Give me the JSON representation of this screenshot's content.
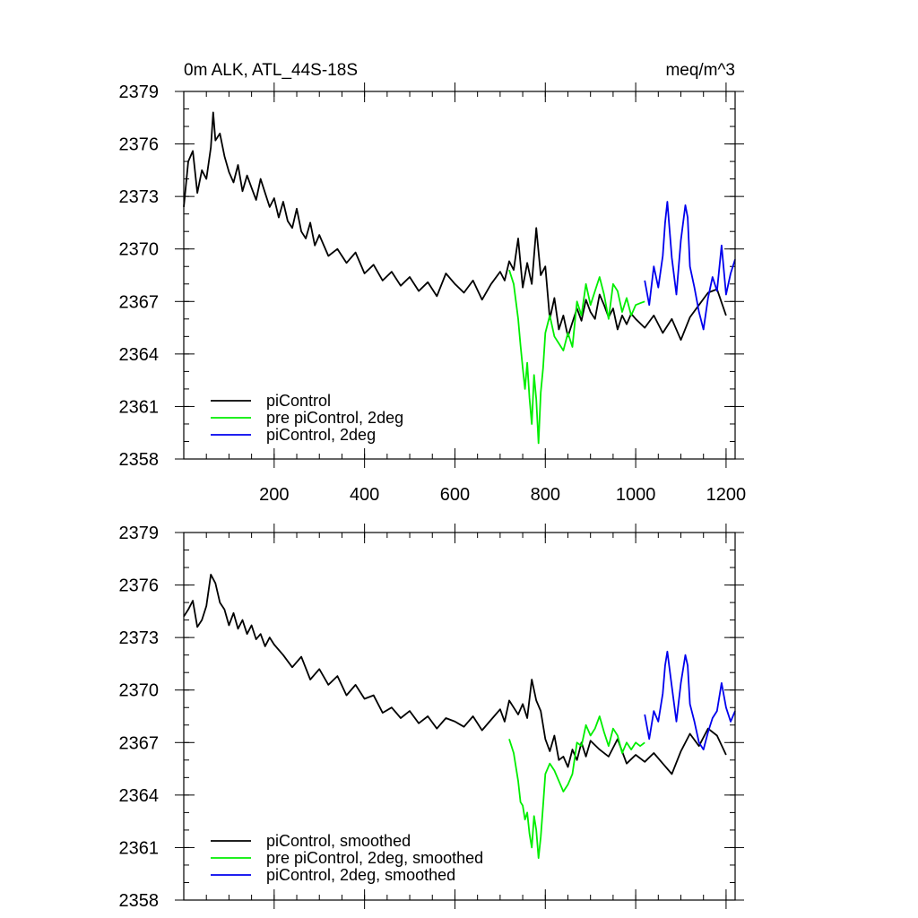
{
  "figure": {
    "title_left": "0m ALK, ATL_44S-18S",
    "title_right": "meq/m^3"
  },
  "chart_data": [
    {
      "type": "line",
      "panel": "top",
      "title": "0m ALK, ATL_44S-18S",
      "units": "meq/m^3",
      "xlim": [
        0,
        1220
      ],
      "ylim": [
        2358,
        2379
      ],
      "yticks": [
        2358,
        2361,
        2364,
        2367,
        2370,
        2373,
        2376,
        2379
      ],
      "ytick_labels": [
        "2358",
        "2361",
        "2364",
        "2367",
        "2370",
        "2373",
        "2376",
        "2379"
      ],
      "xticks": [
        200,
        400,
        600,
        800,
        1000,
        1200
      ],
      "xtick_labels": [
        "200",
        "400",
        "600",
        "800",
        "1000",
        "1200"
      ],
      "legend_position": "bottom-left",
      "series": [
        {
          "name": "piControl",
          "color": "#000000",
          "x": [
            0,
            10,
            20,
            30,
            40,
            50,
            60,
            65,
            70,
            80,
            90,
            100,
            110,
            120,
            130,
            140,
            150,
            160,
            170,
            180,
            190,
            200,
            210,
            220,
            230,
            240,
            250,
            260,
            270,
            280,
            290,
            300,
            320,
            340,
            360,
            380,
            400,
            420,
            440,
            460,
            480,
            500,
            520,
            540,
            560,
            580,
            600,
            620,
            640,
            660,
            680,
            700,
            710,
            720,
            730,
            740,
            750,
            760,
            770,
            780,
            790,
            800,
            810,
            820,
            830,
            840,
            850,
            860,
            870,
            880,
            890,
            900,
            910,
            920,
            930,
            940,
            950,
            960,
            970,
            980,
            990,
            1000,
            1020,
            1040,
            1060,
            1080,
            1100,
            1120,
            1140,
            1160,
            1180,
            1200
          ],
          "y": [
            2372.4,
            2375.0,
            2375.6,
            2373.2,
            2374.5,
            2374.0,
            2375.8,
            2377.8,
            2376.2,
            2376.6,
            2375.3,
            2374.4,
            2373.8,
            2374.8,
            2373.3,
            2374.2,
            2373.5,
            2372.8,
            2374.0,
            2373.2,
            2372.4,
            2372.9,
            2371.8,
            2372.7,
            2371.6,
            2371.2,
            2372.3,
            2371.0,
            2370.6,
            2371.5,
            2370.2,
            2370.8,
            2369.6,
            2370.0,
            2369.2,
            2369.8,
            2368.6,
            2369.1,
            2368.2,
            2368.7,
            2367.9,
            2368.4,
            2367.6,
            2368.1,
            2367.3,
            2368.6,
            2368.0,
            2367.5,
            2368.2,
            2367.1,
            2368.0,
            2368.7,
            2368.2,
            2369.3,
            2368.8,
            2370.6,
            2367.8,
            2369.2,
            2368.0,
            2371.2,
            2368.5,
            2369.0,
            2366.0,
            2367.2,
            2365.4,
            2366.2,
            2365.0,
            2365.8,
            2366.6,
            2365.9,
            2367.1,
            2366.4,
            2366.0,
            2367.4,
            2366.8,
            2366.1,
            2366.6,
            2365.4,
            2366.2,
            2365.7,
            2366.3,
            2366.0,
            2365.5,
            2366.2,
            2365.2,
            2366.0,
            2364.8,
            2366.1,
            2366.8,
            2367.5,
            2367.7,
            2366.2
          ]
        },
        {
          "name": "pre piControl, 2deg",
          "color": "#00ee00",
          "x": [
            720,
            730,
            740,
            745,
            750,
            755,
            760,
            765,
            770,
            775,
            780,
            785,
            790,
            795,
            800,
            810,
            820,
            830,
            840,
            850,
            860,
            870,
            880,
            890,
            900,
            910,
            920,
            930,
            940,
            950,
            960,
            970,
            980,
            990,
            1000,
            1010,
            1020
          ],
          "y": [
            2368.8,
            2368.0,
            2366.0,
            2364.5,
            2363.2,
            2362.0,
            2363.5,
            2361.5,
            2360.0,
            2362.8,
            2361.4,
            2358.9,
            2361.8,
            2363.2,
            2365.2,
            2366.2,
            2365.0,
            2364.6,
            2364.2,
            2365.2,
            2364.4,
            2367.0,
            2366.2,
            2368.0,
            2366.8,
            2367.6,
            2368.4,
            2367.4,
            2366.0,
            2368.0,
            2367.6,
            2366.4,
            2367.2,
            2366.2,
            2366.8,
            2366.9,
            2367.0
          ]
        },
        {
          "name": "piControl, 2deg",
          "color": "#0000ee",
          "x": [
            1020,
            1030,
            1040,
            1050,
            1060,
            1065,
            1070,
            1080,
            1090,
            1100,
            1110,
            1115,
            1120,
            1130,
            1140,
            1150,
            1160,
            1170,
            1180,
            1190,
            1200,
            1210,
            1220
          ],
          "y": [
            2368.2,
            2366.8,
            2369.0,
            2367.8,
            2369.6,
            2371.5,
            2372.7,
            2369.5,
            2367.4,
            2370.5,
            2372.5,
            2371.8,
            2369.0,
            2367.8,
            2366.4,
            2365.4,
            2367.2,
            2368.4,
            2367.6,
            2370.2,
            2367.4,
            2368.6,
            2369.4
          ]
        }
      ]
    },
    {
      "type": "line",
      "panel": "bottom",
      "xlim": [
        0,
        1220
      ],
      "ylim": [
        2358,
        2379
      ],
      "yticks": [
        2358,
        2361,
        2364,
        2367,
        2370,
        2373,
        2376,
        2379
      ],
      "ytick_labels": [
        "2358",
        "2361",
        "2364",
        "2367",
        "2370",
        "2373",
        "2376",
        "2379"
      ],
      "xticks": [
        200,
        400,
        600,
        800,
        1000,
        1200
      ],
      "legend_position": "bottom-left",
      "series": [
        {
          "name": "piControl, smoothed",
          "color": "#000000",
          "x": [
            0,
            10,
            20,
            30,
            40,
            50,
            60,
            70,
            80,
            90,
            100,
            110,
            120,
            130,
            140,
            150,
            160,
            170,
            180,
            190,
            200,
            220,
            240,
            260,
            280,
            300,
            320,
            340,
            360,
            380,
            400,
            420,
            440,
            460,
            480,
            500,
            520,
            540,
            560,
            580,
            600,
            620,
            640,
            660,
            680,
            700,
            710,
            720,
            730,
            740,
            750,
            760,
            770,
            780,
            790,
            800,
            810,
            820,
            830,
            840,
            850,
            860,
            870,
            880,
            890,
            900,
            920,
            940,
            960,
            980,
            1000,
            1020,
            1040,
            1060,
            1080,
            1100,
            1120,
            1140,
            1160,
            1180,
            1200
          ],
          "y": [
            2374.2,
            2374.6,
            2375.1,
            2373.6,
            2374.0,
            2374.8,
            2376.6,
            2376.1,
            2375.0,
            2374.6,
            2373.7,
            2374.4,
            2373.5,
            2374.0,
            2373.2,
            2373.7,
            2372.9,
            2373.2,
            2372.5,
            2373.0,
            2372.6,
            2372.0,
            2371.3,
            2371.9,
            2370.6,
            2371.2,
            2370.3,
            2370.8,
            2369.7,
            2370.3,
            2369.5,
            2369.7,
            2368.7,
            2369.0,
            2368.4,
            2368.8,
            2368.1,
            2368.5,
            2367.8,
            2368.4,
            2368.2,
            2367.9,
            2368.5,
            2367.7,
            2368.3,
            2368.9,
            2368.2,
            2369.4,
            2369.0,
            2368.6,
            2369.2,
            2368.4,
            2370.6,
            2369.4,
            2368.8,
            2367.2,
            2366.5,
            2367.4,
            2366.0,
            2366.2,
            2365.6,
            2366.6,
            2366.0,
            2367.0,
            2366.2,
            2367.1,
            2366.6,
            2366.2,
            2367.2,
            2365.8,
            2366.3,
            2365.9,
            2366.4,
            2365.8,
            2365.2,
            2366.5,
            2367.5,
            2366.8,
            2367.8,
            2367.4,
            2366.3
          ]
        },
        {
          "name": "pre piControl, 2deg, smoothed",
          "color": "#00ee00",
          "x": [
            720,
            730,
            740,
            745,
            750,
            755,
            760,
            765,
            770,
            775,
            780,
            785,
            790,
            795,
            800,
            810,
            820,
            830,
            840,
            850,
            860,
            870,
            880,
            890,
            900,
            910,
            920,
            930,
            940,
            950,
            960,
            970,
            980,
            990,
            1000,
            1010,
            1020
          ],
          "y": [
            2367.2,
            2366.4,
            2364.8,
            2363.6,
            2363.4,
            2362.6,
            2363.0,
            2361.8,
            2361.0,
            2362.8,
            2362.0,
            2360.4,
            2361.6,
            2363.4,
            2365.2,
            2365.8,
            2365.4,
            2364.8,
            2364.2,
            2364.6,
            2365.2,
            2367.0,
            2366.8,
            2368.0,
            2367.4,
            2367.8,
            2368.5,
            2367.6,
            2366.8,
            2367.8,
            2367.4,
            2366.4,
            2367.0,
            2366.6,
            2367.0,
            2366.8,
            2367.0
          ]
        },
        {
          "name": "piControl, 2deg, smoothed",
          "color": "#0000ee",
          "x": [
            1020,
            1030,
            1040,
            1050,
            1060,
            1065,
            1070,
            1080,
            1090,
            1100,
            1110,
            1115,
            1120,
            1130,
            1140,
            1150,
            1160,
            1170,
            1180,
            1190,
            1200,
            1210,
            1220
          ],
          "y": [
            2368.6,
            2367.2,
            2368.8,
            2368.2,
            2369.8,
            2371.4,
            2372.2,
            2370.2,
            2368.2,
            2370.4,
            2372.0,
            2371.4,
            2369.2,
            2368.2,
            2367.0,
            2366.6,
            2367.6,
            2368.4,
            2368.8,
            2370.4,
            2369.0,
            2368.2,
            2368.8
          ]
        }
      ]
    }
  ]
}
